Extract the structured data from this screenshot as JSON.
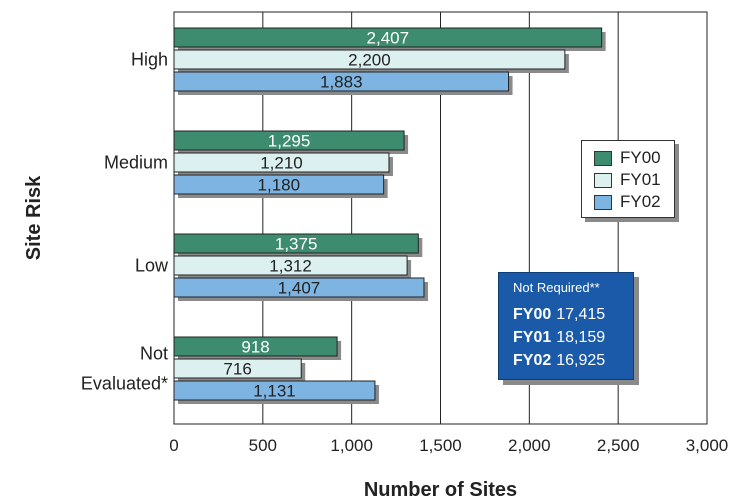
{
  "chart_data": {
    "type": "bar",
    "orientation": "horizontal",
    "categories": [
      "High",
      "Medium",
      "Low",
      "Not Evaluated*"
    ],
    "category_label_lines": [
      [
        "High"
      ],
      [
        "Medium"
      ],
      [
        "Low"
      ],
      [
        "Not",
        "Evaluated*"
      ]
    ],
    "series": [
      {
        "name": "FY00",
        "values": [
          2407,
          1295,
          1375,
          918
        ],
        "labels": [
          "2,407",
          "1,295",
          "1,375",
          "918"
        ],
        "color": "#3d8c6f",
        "label_color": "#ffffff"
      },
      {
        "name": "FY01",
        "values": [
          2200,
          1210,
          1312,
          716
        ],
        "labels": [
          "2,200",
          "1,210",
          "1,312",
          "716"
        ],
        "color": "#dcf0f0",
        "label_color": "#222222"
      },
      {
        "name": "FY02",
        "values": [
          1883,
          1180,
          1407,
          1131
        ],
        "labels": [
          "1,883",
          "1,180",
          "1,407",
          "1,131"
        ],
        "color": "#7eb4e2",
        "label_color": "#222222"
      }
    ],
    "xlabel": "Number of Sites",
    "ylabel": "Site Risk",
    "xlim": [
      0,
      3000
    ],
    "xticks": [
      0,
      500,
      1000,
      1500,
      2000,
      2500,
      3000
    ],
    "xtick_labels": [
      "0",
      "500",
      "1,000",
      "1,500",
      "2,000",
      "2,500",
      "3,000"
    ],
    "grid": true,
    "legend_position": "right"
  },
  "annotation": {
    "title": "Not Required**",
    "rows": [
      {
        "year": "FY00",
        "value": "17,415"
      },
      {
        "year": "FY01",
        "value": "18,159"
      },
      {
        "year": "FY02",
        "value": "16,925"
      }
    ],
    "background": "#1a5aa8"
  }
}
